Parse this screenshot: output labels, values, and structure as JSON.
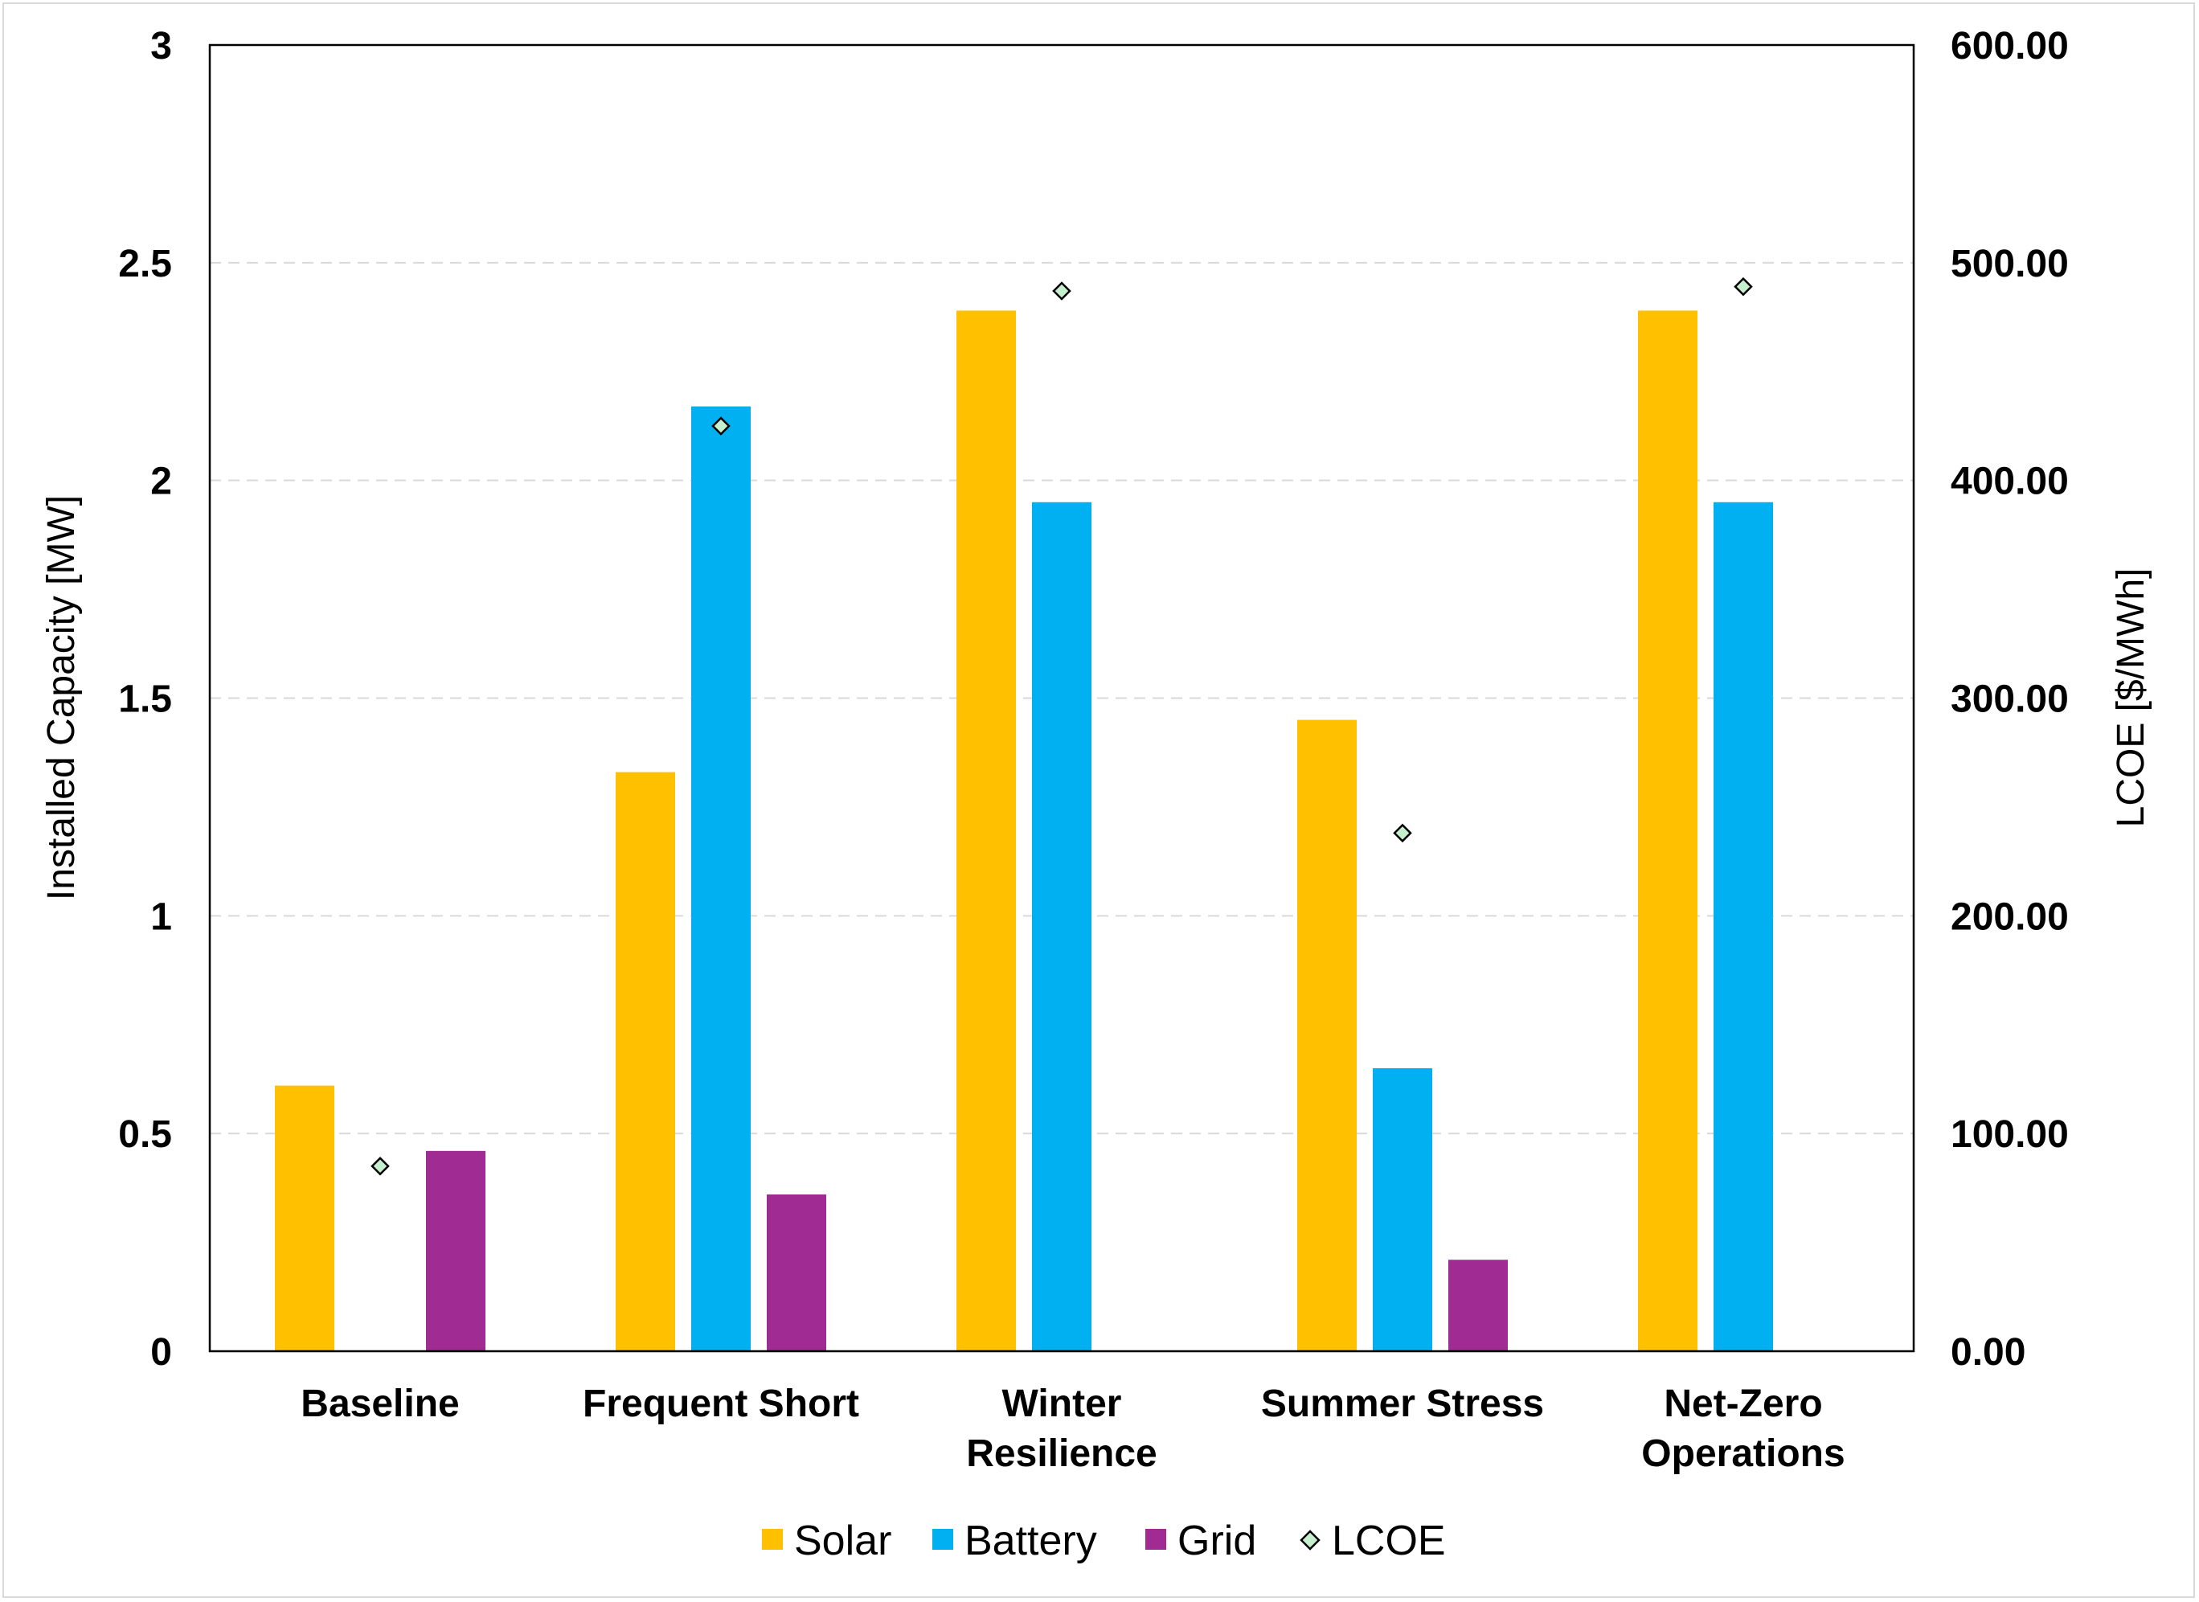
{
  "chart_data": {
    "type": "bar",
    "categories": [
      [
        "Baseline"
      ],
      [
        "Frequent Short"
      ],
      [
        "Winter",
        "Resilience"
      ],
      [
        "Summer Stress"
      ],
      [
        "Net-Zero",
        "Operations"
      ]
    ],
    "series": [
      {
        "name": "Solar",
        "color": "#ffc000",
        "values": [
          0.61,
          1.33,
          2.39,
          1.45,
          2.39
        ]
      },
      {
        "name": "Battery",
        "color": "#00b0f0",
        "values": [
          0,
          2.17,
          1.95,
          0.65,
          1.95
        ]
      },
      {
        "name": "Grid",
        "color": "#a02b93",
        "values": [
          0.46,
          0.36,
          0,
          0.21,
          0
        ]
      }
    ],
    "line_series": {
      "name": "LCOE",
      "marker": "diamond",
      "color": "#c6efce",
      "axis": "right",
      "values": [
        85,
        425,
        487,
        null,
        489
      ]
    },
    "summer_lcoe": 238,
    "y_left": {
      "label": "Installed Capacity [MW]",
      "ylim": [
        0,
        3
      ],
      "ticks": [
        "0",
        "0.5",
        "1",
        "1.5",
        "2",
        "2.5",
        "3"
      ],
      "tick_values": [
        0,
        0.5,
        1,
        1.5,
        2,
        2.5,
        3
      ]
    },
    "y_right": {
      "label": "LCOE [$/MWh]",
      "ylim": [
        0,
        600
      ],
      "ticks": [
        "0.00",
        "100.00",
        "200.00",
        "300.00",
        "400.00",
        "500.00",
        "600.00"
      ],
      "tick_values": [
        0,
        100,
        200,
        300,
        400,
        500,
        600
      ]
    },
    "grid": true,
    "legend": [
      "Solar",
      "Battery",
      "Grid",
      "LCOE"
    ],
    "legend_position": "bottom"
  }
}
